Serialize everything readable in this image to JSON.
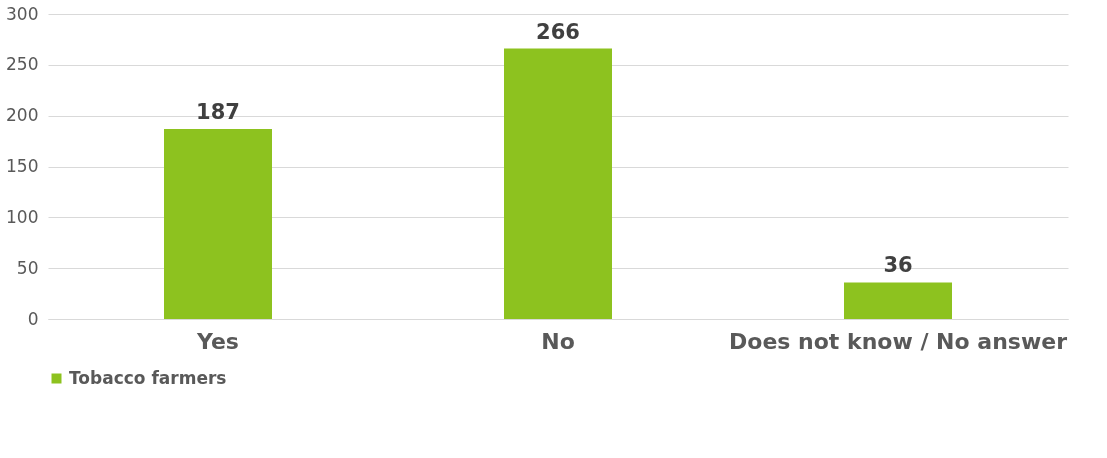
{
  "chart_data": {
    "type": "bar",
    "categories": [
      "Yes",
      "No",
      "Does not know / No answer"
    ],
    "series": [
      {
        "name": "Tobacco farmers",
        "color": "#8dc21f",
        "values": [
          187,
          266,
          36
        ]
      }
    ],
    "ylim": [
      0,
      300
    ],
    "yticks": [
      0,
      50,
      100,
      150,
      200,
      250,
      300
    ],
    "grid": "y",
    "legend": "bottom",
    "data_labels": true
  }
}
